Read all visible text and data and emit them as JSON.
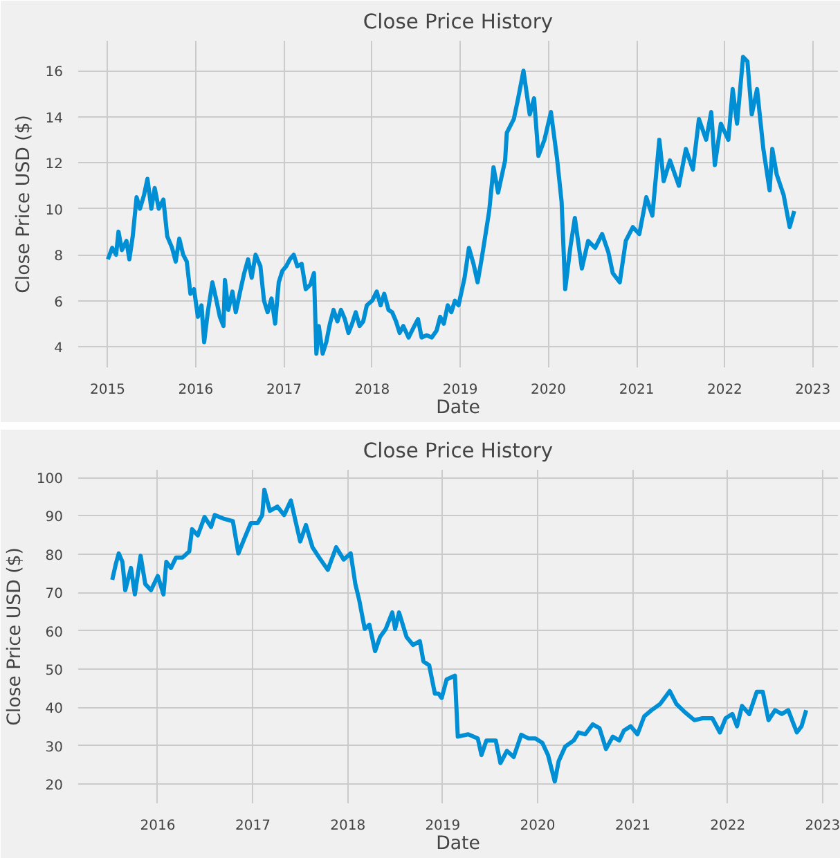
{
  "chart_data": [
    {
      "type": "line",
      "title": "Close Price History",
      "xlabel": "Date",
      "ylabel": "Close Price USD ($)",
      "grid": true,
      "marker": "none",
      "line_style": "solid",
      "xlim": [
        "2014-09-01",
        "2023-04-15"
      ],
      "xticks": [
        "2015",
        "2016",
        "2017",
        "2018",
        "2019",
        "2020",
        "2021",
        "2022",
        "2023"
      ],
      "ylim": [
        3.1,
        17.3
      ],
      "yticks": [
        4,
        6,
        8,
        10,
        12,
        14,
        16
      ],
      "series": [
        {
          "color": "#008fd5",
          "x": [
            "2015-01-02",
            "2015-01-20",
            "2015-02-05",
            "2015-02-15",
            "2015-03-01",
            "2015-03-20",
            "2015-04-01",
            "2015-04-15",
            "2015-05-01",
            "2015-05-15",
            "2015-06-01",
            "2015-06-15",
            "2015-07-01",
            "2015-07-15",
            "2015-08-01",
            "2015-08-20",
            "2015-09-05",
            "2015-09-25",
            "2015-10-10",
            "2015-10-25",
            "2015-11-10",
            "2015-11-25",
            "2015-12-10",
            "2015-12-25",
            "2016-01-10",
            "2016-01-25",
            "2016-02-05",
            "2016-02-20",
            "2016-03-10",
            "2016-03-25",
            "2016-04-10",
            "2016-04-25",
            "2016-05-01",
            "2016-05-15",
            "2016-06-01",
            "2016-06-15",
            "2016-07-01",
            "2016-07-20",
            "2016-08-05",
            "2016-08-20",
            "2016-09-05",
            "2016-09-25",
            "2016-10-10",
            "2016-10-25",
            "2016-11-10",
            "2016-11-25",
            "2016-12-10",
            "2016-12-25",
            "2017-01-10",
            "2017-01-25",
            "2017-02-10",
            "2017-02-25",
            "2017-03-15",
            "2017-04-01",
            "2017-04-20",
            "2017-05-05",
            "2017-05-15",
            "2017-05-25",
            "2017-06-10",
            "2017-06-25",
            "2017-07-10",
            "2017-07-25",
            "2017-08-10",
            "2017-08-25",
            "2017-09-10",
            "2017-09-25",
            "2017-10-10",
            "2017-10-25",
            "2017-11-10",
            "2017-11-25",
            "2017-12-10",
            "2018-01-01",
            "2018-01-20",
            "2018-02-05",
            "2018-02-20",
            "2018-03-10",
            "2018-03-25",
            "2018-04-10",
            "2018-04-25",
            "2018-05-10",
            "2018-06-01",
            "2018-06-20",
            "2018-07-10",
            "2018-07-25",
            "2018-08-15",
            "2018-09-05",
            "2018-09-25",
            "2018-10-10",
            "2018-10-25",
            "2018-11-10",
            "2018-11-25",
            "2018-12-10",
            "2018-12-25",
            "2019-01-19",
            "2019-02-06",
            "2019-02-25",
            "2019-03-14",
            "2019-04-01",
            "2019-05-01",
            "2019-05-19",
            "2019-06-07",
            "2019-07-06",
            "2019-07-13",
            "2019-08-11",
            "2019-08-29",
            "2019-09-20",
            "2019-10-16",
            "2019-11-03",
            "2019-11-21",
            "2019-12-16",
            "2020-01-12",
            "2020-02-06",
            "2020-02-25",
            "2020-03-11",
            "2020-04-01",
            "2020-04-20",
            "2020-05-19",
            "2020-06-14",
            "2020-07-13",
            "2020-08-11",
            "2020-09-06",
            "2020-09-24",
            "2020-10-23",
            "2020-11-17",
            "2020-12-16",
            "2021-01-12",
            "2021-02-10",
            "2021-03-07",
            "2021-04-05",
            "2021-04-23",
            "2021-05-19",
            "2021-06-25",
            "2021-07-24",
            "2021-08-22",
            "2021-09-16",
            "2021-10-16",
            "2021-11-06",
            "2021-11-21",
            "2021-12-16",
            "2022-01-16",
            "2022-02-03",
            "2022-02-21",
            "2022-03-18",
            "2022-04-05",
            "2022-04-23",
            "2022-05-15",
            "2022-06-10",
            "2022-07-06",
            "2022-07-17",
            "2022-08-04",
            "2022-09-02",
            "2022-09-27",
            "2022-10-16"
          ],
          "values": [
            7.8,
            8.3,
            8.0,
            9.0,
            8.2,
            8.6,
            7.8,
            8.8,
            10.5,
            10.0,
            10.6,
            11.3,
            10.0,
            10.9,
            10.0,
            10.4,
            8.8,
            8.3,
            7.7,
            8.7,
            8.0,
            7.7,
            6.3,
            6.5,
            5.3,
            5.8,
            4.2,
            5.5,
            6.8,
            6.1,
            5.3,
            4.9,
            6.9,
            5.6,
            6.4,
            5.5,
            6.3,
            7.2,
            7.8,
            7.0,
            8.0,
            7.5,
            6.0,
            5.5,
            6.1,
            5.0,
            6.8,
            7.3,
            7.5,
            7.8,
            8.0,
            7.5,
            7.6,
            6.5,
            6.7,
            7.2,
            3.7,
            4.9,
            3.7,
            4.2,
            5.0,
            5.6,
            5.1,
            5.6,
            5.2,
            4.6,
            5.0,
            5.5,
            4.9,
            5.1,
            5.8,
            6.0,
            6.4,
            5.8,
            6.3,
            5.6,
            5.5,
            5.1,
            4.6,
            4.9,
            4.4,
            4.8,
            5.2,
            4.4,
            4.5,
            4.4,
            4.7,
            5.3,
            5.0,
            5.8,
            5.5,
            6.0,
            5.8,
            7.0,
            8.3,
            7.6,
            6.8,
            7.9,
            9.9,
            11.8,
            10.7,
            12.1,
            13.3,
            13.9,
            14.8,
            16.0,
            14.1,
            14.8,
            12.3,
            13.0,
            14.2,
            12.2,
            10.3,
            6.5,
            8.3,
            9.6,
            7.4,
            8.6,
            8.3,
            8.9,
            8.1,
            7.2,
            6.8,
            8.6,
            9.2,
            8.9,
            10.5,
            9.7,
            13.0,
            11.2,
            12.1,
            11.0,
            12.6,
            11.7,
            13.9,
            13.0,
            14.2,
            11.9,
            13.7,
            13.0,
            15.2,
            13.7,
            16.6,
            16.4,
            14.1,
            15.2,
            12.6,
            10.8,
            12.6,
            11.5,
            10.6,
            9.2,
            9.9
          ]
        }
      ]
    },
    {
      "type": "line",
      "title": "Close Price History",
      "xlabel": "Date",
      "ylabel": "Close Price USD ($)",
      "grid": true,
      "marker": "none",
      "line_style": "solid",
      "xlim": [
        "2015-03-01",
        "2023-03-01"
      ],
      "xticks": [
        "2016",
        "2017",
        "2018",
        "2019",
        "2020",
        "2021",
        "2022",
        "2023"
      ],
      "ylim": [
        15,
        102
      ],
      "yticks": [
        20,
        30,
        40,
        50,
        60,
        70,
        80,
        90,
        100
      ],
      "series": [
        {
          "color": "#008fd5",
          "x": [
            "2015-07-10",
            "2015-07-24",
            "2015-08-04",
            "2015-08-18",
            "2015-08-29",
            "2015-09-20",
            "2015-10-05",
            "2015-10-27",
            "2015-11-14",
            "2015-12-06",
            "2016-01-01",
            "2016-01-23",
            "2016-02-03",
            "2016-02-21",
            "2016-03-11",
            "2016-04-05",
            "2016-05-01",
            "2016-05-12",
            "2016-06-03",
            "2016-06-29",
            "2016-07-24",
            "2016-08-07",
            "2016-09-13",
            "2016-10-16",
            "2016-11-06",
            "2016-11-28",
            "2016-12-24",
            "2017-01-19",
            "2017-02-06",
            "2017-02-14",
            "2017-03-07",
            "2017-04-05",
            "2017-05-01",
            "2017-05-27",
            "2017-06-14",
            "2017-07-02",
            "2017-07-24",
            "2017-08-18",
            "2017-09-13",
            "2017-10-16",
            "2017-11-17",
            "2017-12-16",
            "2018-01-12",
            "2018-01-30",
            "2018-02-14",
            "2018-03-07",
            "2018-03-25",
            "2018-04-16",
            "2018-05-05",
            "2018-05-27",
            "2018-06-21",
            "2018-07-02",
            "2018-07-17",
            "2018-08-15",
            "2018-09-09",
            "2018-10-05",
            "2018-10-19",
            "2018-11-10",
            "2018-12-02",
            "2018-12-16",
            "2018-12-28",
            "2019-01-16",
            "2019-02-17",
            "2019-02-28",
            "2019-04-09",
            "2019-05-16",
            "2019-05-30",
            "2019-06-18",
            "2019-07-24",
            "2019-08-11",
            "2019-09-05",
            "2019-10-01",
            "2019-10-30",
            "2019-11-28",
            "2019-12-24",
            "2020-01-19",
            "2020-02-10",
            "2020-03-07",
            "2020-03-22",
            "2020-04-16",
            "2020-05-19",
            "2020-06-07",
            "2020-07-02",
            "2020-07-31",
            "2020-08-26",
            "2020-09-20",
            "2020-10-16",
            "2020-11-10",
            "2020-11-28",
            "2020-12-24",
            "2021-01-19",
            "2021-02-14",
            "2021-03-14",
            "2021-04-16",
            "2021-05-23",
            "2021-06-18",
            "2021-07-20",
            "2021-08-26",
            "2021-09-27",
            "2021-11-03",
            "2021-12-02",
            "2021-12-24",
            "2022-01-19",
            "2022-02-06",
            "2022-02-25",
            "2022-03-25",
            "2022-04-23",
            "2022-05-16",
            "2022-06-07",
            "2022-07-02",
            "2022-07-28",
            "2022-08-22",
            "2022-09-09",
            "2022-09-24",
            "2022-10-12",
            "2022-10-30"
          ],
          "values": [
            73.3,
            77.5,
            80.2,
            78.0,
            70.6,
            76.4,
            69.5,
            79.6,
            72.2,
            70.6,
            74.3,
            69.5,
            78.0,
            76.4,
            79.1,
            79.1,
            80.7,
            86.5,
            84.9,
            89.7,
            87.1,
            90.2,
            89.2,
            88.6,
            80.2,
            83.9,
            88.1,
            88.1,
            90.2,
            96.8,
            91.3,
            92.4,
            90.2,
            94.0,
            88.6,
            83.3,
            87.6,
            81.8,
            79.1,
            75.9,
            81.8,
            78.6,
            80.2,
            72.2,
            68.0,
            60.5,
            61.6,
            54.7,
            58.4,
            60.5,
            64.8,
            60.5,
            64.8,
            58.4,
            56.3,
            57.3,
            52.0,
            51.0,
            43.6,
            43.6,
            42.5,
            47.3,
            48.3,
            32.4,
            33.0,
            31.9,
            27.6,
            31.4,
            31.4,
            25.5,
            28.7,
            27.1,
            32.9,
            31.9,
            31.9,
            30.8,
            27.6,
            20.7,
            26.0,
            29.8,
            31.4,
            33.5,
            33.0,
            35.6,
            34.6,
            29.2,
            32.4,
            31.4,
            34.0,
            35.1,
            33.0,
            37.7,
            39.3,
            40.9,
            44.3,
            40.9,
            38.8,
            36.7,
            37.2,
            37.2,
            33.5,
            37.2,
            38.3,
            35.1,
            40.4,
            38.3,
            44.1,
            44.1,
            36.7,
            39.3,
            38.3,
            39.3,
            36.1,
            33.5,
            35.1,
            39.3
          ]
        }
      ]
    }
  ]
}
